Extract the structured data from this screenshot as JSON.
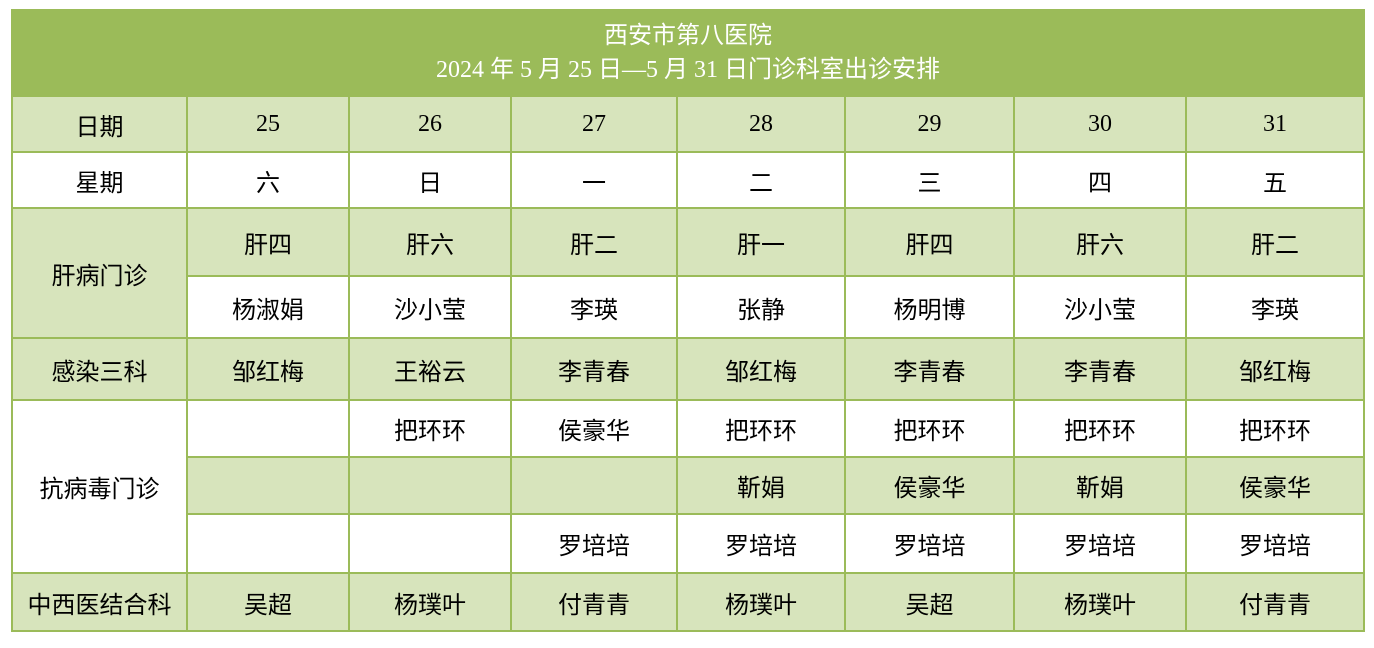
{
  "title": {
    "line1": "西安市第八医院",
    "line2": "2024 年 5 月 25 日—5 月 31 日门诊科室出诊安排"
  },
  "colors": {
    "header": "#9bbb59",
    "band": "#d7e4bc",
    "border": "#9bbb59"
  },
  "rows": {
    "date": {
      "label": "日期",
      "values": [
        "25",
        "26",
        "27",
        "28",
        "29",
        "30",
        "31"
      ]
    },
    "weekday": {
      "label": "星期",
      "values": [
        "六",
        "日",
        "一",
        "二",
        "三",
        "四",
        "五"
      ]
    },
    "liver": {
      "label": "肝病门诊",
      "rooms": [
        "肝四",
        "肝六",
        "肝二",
        "肝一",
        "肝四",
        "肝六",
        "肝二"
      ],
      "doctors": [
        "杨淑娟",
        "沙小莹",
        "李瑛",
        "张静",
        "杨明博",
        "沙小莹",
        "李瑛"
      ]
    },
    "infection3": {
      "label": "感染三科",
      "values": [
        "邹红梅",
        "王裕云",
        "李青春",
        "邹红梅",
        "李青春",
        "李青春",
        "邹红梅"
      ]
    },
    "antiviral": {
      "label": "抗病毒门诊",
      "line1": [
        "",
        "把环环",
        "侯豪华",
        "把环环",
        "把环环",
        "把环环",
        "把环环"
      ],
      "line2": [
        "",
        "",
        "",
        "靳娟",
        "侯豪华",
        "靳娟",
        "侯豪华"
      ],
      "line3": [
        "",
        "",
        "罗培培",
        "罗培培",
        "罗培培",
        "罗培培",
        "罗培培"
      ]
    },
    "integrated": {
      "label": "中西医结合科",
      "values": [
        "吴超",
        "杨璞叶",
        "付青青",
        "杨璞叶",
        "吴超",
        "杨璞叶",
        "付青青"
      ]
    }
  }
}
